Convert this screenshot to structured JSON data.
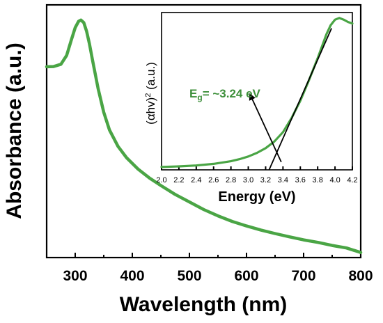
{
  "chart_data": [
    {
      "type": "line",
      "title": "",
      "xlabel": "Wavelength (nm)",
      "ylabel": "Absorbance (a.u.)",
      "xlim": [
        250,
        800
      ],
      "ylim": [
        0,
        1.0
      ],
      "x_ticks": [
        300,
        400,
        500,
        600,
        700,
        800
      ],
      "y_ticks_labeled": false,
      "grid": false,
      "legend": "none",
      "series": [
        {
          "color": "#4aa545",
          "x": [
            250,
            262,
            275,
            285,
            293,
            300,
            306,
            310,
            315,
            320,
            325,
            330,
            340,
            350,
            360,
            375,
            390,
            410,
            430,
            450,
            475,
            500,
            525,
            550,
            575,
            600,
            625,
            650,
            675,
            700,
            725,
            750,
            775,
            800
          ],
          "y": [
            0.755,
            0.756,
            0.765,
            0.8,
            0.86,
            0.91,
            0.935,
            0.94,
            0.93,
            0.895,
            0.845,
            0.785,
            0.67,
            0.575,
            0.505,
            0.44,
            0.395,
            0.35,
            0.315,
            0.285,
            0.25,
            0.22,
            0.19,
            0.165,
            0.143,
            0.125,
            0.109,
            0.095,
            0.082,
            0.07,
            0.06,
            0.048,
            0.038,
            0.02
          ]
        }
      ]
    },
    {
      "type": "line",
      "title": "",
      "xlabel": "Energy (eV)",
      "ylabel_parts": {
        "before": "(",
        "alpha": "α",
        "hv": "hv)",
        "power": "2",
        "units": " (a.u.)"
      },
      "xlim": [
        2.0,
        4.2
      ],
      "ylim": [
        0,
        1.0
      ],
      "x_ticks": [
        "2.0",
        "2.2",
        "2.4",
        "2.6",
        "2.8",
        "3.0",
        "3.2",
        "3.4",
        "3.6",
        "3.8",
        "4.0",
        "4.2"
      ],
      "grid": false,
      "legend": "none",
      "series": [
        {
          "color": "#4aa545",
          "x": [
            2.0,
            2.2,
            2.4,
            2.6,
            2.8,
            2.9,
            3.0,
            3.1,
            3.2,
            3.3,
            3.4,
            3.5,
            3.6,
            3.7,
            3.8,
            3.9,
            3.95,
            4.0,
            4.05,
            4.1,
            4.15,
            4.2
          ],
          "y": [
            0.018,
            0.022,
            0.028,
            0.038,
            0.055,
            0.068,
            0.085,
            0.108,
            0.138,
            0.18,
            0.24,
            0.33,
            0.44,
            0.57,
            0.71,
            0.86,
            0.92,
            0.955,
            0.965,
            0.955,
            0.94,
            0.93
          ]
        }
      ],
      "tangent_line": {
        "x": [
          3.24,
          3.96
        ],
        "y": [
          0.0,
          0.9
        ],
        "color": "#000000"
      },
      "annotation": {
        "text_main": "E",
        "text_sub": "g",
        "text_rest": "= ~3.24 eV",
        "color": "#3d8f3a",
        "arrow_from": [
          3.38,
          0.05
        ],
        "arrow_to": [
          3.02,
          0.48
        ]
      }
    }
  ]
}
